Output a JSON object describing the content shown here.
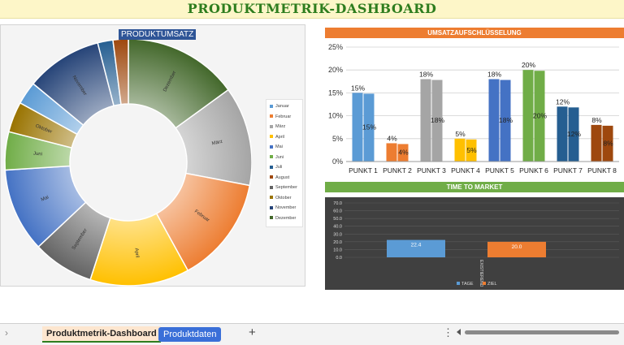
{
  "dashboard": {
    "title": "PRODUKTMETRIK-DASHBOARD"
  },
  "colors": {
    "accent_orange": "#ed7d31",
    "accent_green": "#70ad47",
    "title_green": "#2e7d1e",
    "donut_title_bg": "#2f5597"
  },
  "chart_data": [
    {
      "type": "pie",
      "title": "PRODUKTUMSATZ",
      "legend_position": "right",
      "categories": [
        "Januar",
        "Februar",
        "März",
        "April",
        "Mai",
        "Juni",
        "Juli",
        "August",
        "September",
        "Oktober",
        "November",
        "Dezember"
      ],
      "values": [
        3,
        14,
        13,
        13,
        11,
        5,
        2,
        2,
        8,
        4,
        10,
        15
      ],
      "colors": [
        "#5b9bd5",
        "#ed7d31",
        "#a5a5a5",
        "#ffc000",
        "#4472c4",
        "#70ad47",
        "#255e91",
        "#9e480e",
        "#636363",
        "#997300",
        "#264478",
        "#43682b"
      ],
      "order": [
        11,
        2,
        1,
        3,
        8,
        4,
        5,
        9,
        0,
        10,
        6,
        7
      ]
    },
    {
      "type": "bar",
      "title": "UMSATZAUFSCHLÜSSELUNG",
      "categories": [
        "PUNKT 1",
        "PUNKT 2",
        "PUNKT 3",
        "PUNKT 4",
        "PUNKT 5",
        "PUNKT 6",
        "PUNKT 7",
        "PUNKT 8"
      ],
      "values": [
        15,
        4,
        18,
        5,
        18,
        20,
        12,
        8
      ],
      "data_labels": [
        "15%",
        "4%",
        "18%",
        "5%",
        "18%",
        "20%",
        "12%",
        "8%"
      ],
      "colors": [
        "#5b9bd5",
        "#ed7d31",
        "#a5a5a5",
        "#ffc000",
        "#4472c4",
        "#70ad47",
        "#255e91",
        "#9e480e"
      ],
      "ylim": [
        0,
        25
      ],
      "yticks": [
        "0%",
        "5%",
        "10%",
        "15%",
        "20%",
        "25%"
      ],
      "grid": true
    },
    {
      "type": "bar",
      "title": "TIME TO MARKET",
      "category": "EXISTIEREND",
      "series": [
        {
          "name": "TAGE",
          "value": 22.4,
          "label": "22.4",
          "color": "#5b9bd5"
        },
        {
          "name": "ZIEL",
          "value": 20.0,
          "label": "20.0",
          "color": "#ed7d31"
        }
      ],
      "ylim": [
        0,
        70
      ],
      "yticks": [
        "0.0",
        "10.0",
        "20.0",
        "30.0",
        "40.0",
        "50.0",
        "60.0",
        "70.0"
      ],
      "legend_position": "bottom"
    }
  ],
  "sheet_tabs": {
    "active": "Produktmetrik-Dashboard",
    "second": "Produktdaten",
    "add": "+",
    "nav_left": "›",
    "more": "⋮"
  }
}
